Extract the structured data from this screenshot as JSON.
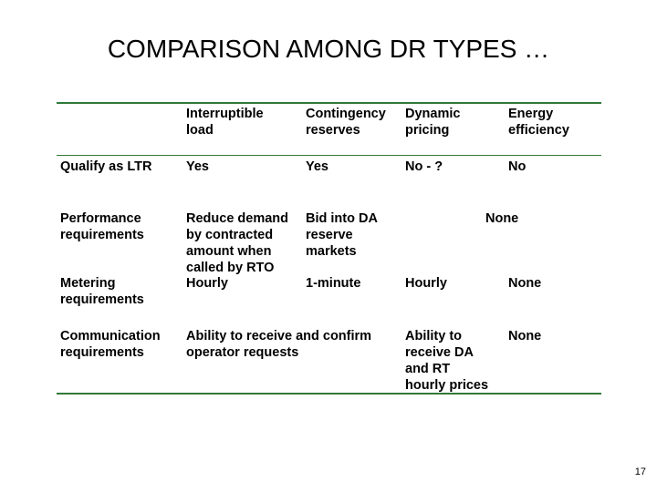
{
  "slide": {
    "title": "COMPARISON AMONG DR TYPES …",
    "page_number": "17"
  },
  "table": {
    "headers": [
      "",
      "Interruptible\nload",
      "Contingency\nreserves",
      "Dynamic\npricing",
      "Energy\nefficiency"
    ],
    "rows": {
      "ltr": {
        "label": "Qualify as LTR",
        "interruptible": "Yes",
        "contingency": "Yes",
        "dynamic": "No - ?",
        "efficiency": "No"
      },
      "performance": {
        "label": "Performance\nrequirements",
        "interruptible": "Reduce demand\nby contracted\namount when\ncalled by RTO",
        "contingency": "Bid into DA\nreserve\nmarkets",
        "dynamic_efficiency": "None"
      },
      "metering": {
        "label": "Metering\nrequirements",
        "interruptible": "Hourly",
        "contingency": "1-minute",
        "dynamic": "Hourly",
        "efficiency": "None"
      },
      "communication": {
        "label": "Communication\nrequirements",
        "interruptible_contingency": "Ability to receive and confirm\noperator requests",
        "dynamic": "Ability to\nreceive DA\nand RT\nhourly prices",
        "efficiency": "None"
      }
    }
  },
  "colors": {
    "rule": "#2f7a3a"
  }
}
